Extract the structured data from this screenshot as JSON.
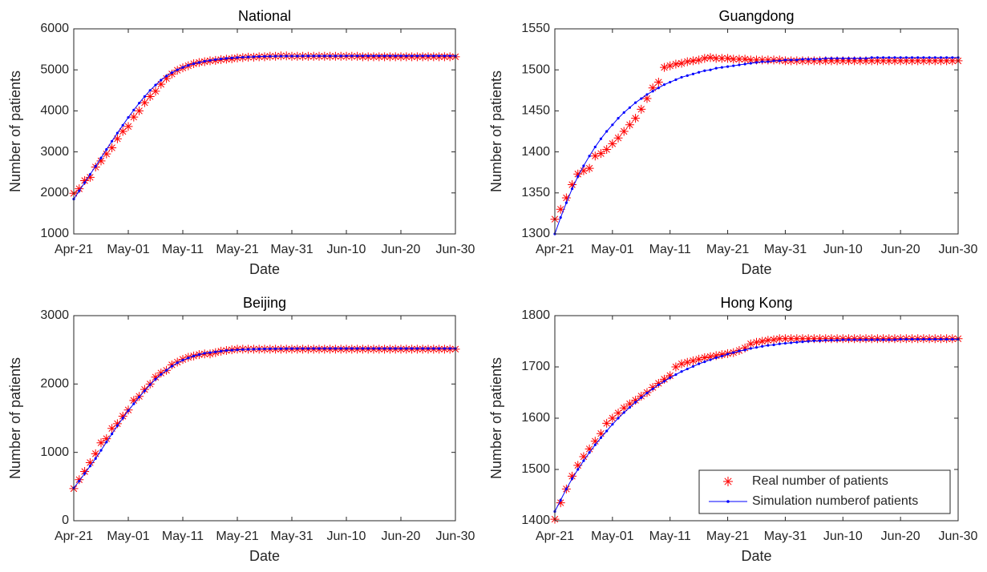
{
  "chart_data": [
    {
      "type": "line",
      "title": "National",
      "x_label": "Date",
      "y_label": "Number of patients",
      "x": [
        0,
        1,
        2,
        3,
        4,
        5,
        6,
        7,
        8,
        9,
        10,
        11,
        12,
        13,
        14,
        15,
        16,
        17,
        18,
        19,
        20,
        21,
        22,
        23,
        24,
        25,
        26,
        27,
        28,
        29,
        30,
        31,
        32,
        33,
        34,
        35,
        36,
        37,
        38,
        39,
        40,
        41,
        42,
        43,
        44,
        45,
        46,
        47,
        48,
        49,
        50,
        51,
        52,
        53,
        54,
        55,
        56,
        57,
        58,
        59,
        60,
        61,
        62,
        63,
        64,
        65,
        66,
        67,
        68,
        69,
        70
      ],
      "xlim": [
        0,
        70
      ],
      "xticks": [
        {
          "value": 0,
          "label": "Apr-21"
        },
        {
          "value": 10,
          "label": "May-01"
        },
        {
          "value": 20,
          "label": "May-11"
        },
        {
          "value": 30,
          "label": "May-21"
        },
        {
          "value": 40,
          "label": "May-31"
        },
        {
          "value": 50,
          "label": "Jun-10"
        },
        {
          "value": 60,
          "label": "Jun-20"
        },
        {
          "value": 70,
          "label": "Jun-30"
        }
      ],
      "ylim": [
        1000,
        6000
      ],
      "yticks": [
        1000,
        2000,
        3000,
        4000,
        5000,
        6000
      ],
      "series": [
        {
          "name": "Real number of patients",
          "color": "#ff0000",
          "marker": "star",
          "values": [
            1990,
            2100,
            2300,
            2380,
            2630,
            2780,
            2950,
            3100,
            3320,
            3500,
            3620,
            3850,
            4000,
            4200,
            4350,
            4480,
            4650,
            4790,
            4900,
            4990,
            5050,
            5100,
            5150,
            5180,
            5200,
            5220,
            5230,
            5250,
            5260,
            5270,
            5290,
            5300,
            5310,
            5310,
            5320,
            5320,
            5330,
            5330,
            5340,
            5340,
            5330,
            5330,
            5330,
            5330,
            5330,
            5330,
            5330,
            5330,
            5330,
            5330,
            5330,
            5330,
            5330,
            5320,
            5320,
            5320,
            5320,
            5320,
            5320,
            5320,
            5320,
            5320,
            5320,
            5320,
            5320,
            5320,
            5320,
            5320,
            5320,
            5320,
            5320
          ]
        },
        {
          "name": "Simulation numberof patients",
          "color": "#0000ff",
          "marker": "dot",
          "values": [
            1850,
            2050,
            2250,
            2450,
            2650,
            2850,
            3060,
            3260,
            3460,
            3650,
            3840,
            4020,
            4190,
            4350,
            4500,
            4630,
            4750,
            4850,
            4930,
            5000,
            5060,
            5110,
            5150,
            5180,
            5210,
            5230,
            5250,
            5265,
            5280,
            5290,
            5300,
            5308,
            5315,
            5320,
            5325,
            5328,
            5331,
            5333,
            5335,
            5336,
            5337,
            5337,
            5338,
            5338,
            5338,
            5339,
            5339,
            5339,
            5339,
            5339,
            5340,
            5340,
            5340,
            5340,
            5340,
            5340,
            5340,
            5340,
            5340,
            5340,
            5340,
            5340,
            5340,
            5340,
            5340,
            5340,
            5340,
            5340,
            5340,
            5340,
            5340
          ]
        }
      ]
    },
    {
      "type": "line",
      "title": "Guangdong",
      "x_label": "Date",
      "y_label": "Number of patients",
      "x": [
        0,
        1,
        2,
        3,
        4,
        5,
        6,
        7,
        8,
        9,
        10,
        11,
        12,
        13,
        14,
        15,
        16,
        17,
        18,
        19,
        20,
        21,
        22,
        23,
        24,
        25,
        26,
        27,
        28,
        29,
        30,
        31,
        32,
        33,
        34,
        35,
        36,
        37,
        38,
        39,
        40,
        41,
        42,
        43,
        44,
        45,
        46,
        47,
        48,
        49,
        50,
        51,
        52,
        53,
        54,
        55,
        56,
        57,
        58,
        59,
        60,
        61,
        62,
        63,
        64,
        65,
        66,
        67,
        68,
        69,
        70
      ],
      "xlim": [
        0,
        70
      ],
      "xticks": [
        {
          "value": 0,
          "label": "Apr-21"
        },
        {
          "value": 10,
          "label": "May-01"
        },
        {
          "value": 20,
          "label": "May-11"
        },
        {
          "value": 30,
          "label": "May-21"
        },
        {
          "value": 40,
          "label": "May-31"
        },
        {
          "value": 50,
          "label": "Jun-10"
        },
        {
          "value": 60,
          "label": "Jun-20"
        },
        {
          "value": 70,
          "label": "Jun-30"
        }
      ],
      "ylim": [
        1300,
        1550
      ],
      "yticks": [
        1300,
        1350,
        1400,
        1450,
        1500,
        1550
      ],
      "series": [
        {
          "name": "Real number of patients",
          "color": "#ff0000",
          "marker": "star",
          "values": [
            1318,
            1330,
            1344,
            1360,
            1373,
            1377,
            1380,
            1395,
            1398,
            1403,
            1410,
            1417,
            1425,
            1433,
            1441,
            1452,
            1465,
            1478,
            1485,
            1503,
            1505,
            1507,
            1508,
            1510,
            1511,
            1512,
            1514,
            1515,
            1514,
            1514,
            1514,
            1513,
            1513,
            1513,
            1512,
            1512,
            1512,
            1512,
            1512,
            1512,
            1511,
            1511,
            1511,
            1511,
            1511,
            1511,
            1511,
            1511,
            1511,
            1511,
            1511,
            1511,
            1511,
            1511,
            1511,
            1511,
            1511,
            1511,
            1511,
            1511,
            1511,
            1511,
            1511,
            1511,
            1511,
            1511,
            1511,
            1511,
            1511,
            1511,
            1511
          ]
        },
        {
          "name": "Simulation numberof patients",
          "color": "#0000ff",
          "marker": "dot",
          "values": [
            1300,
            1320,
            1338,
            1355,
            1370,
            1383,
            1395,
            1406,
            1416,
            1425,
            1433,
            1441,
            1448,
            1454,
            1460,
            1465,
            1470,
            1474,
            1478,
            1482,
            1485,
            1488,
            1491,
            1493,
            1495,
            1497,
            1499,
            1500,
            1502,
            1503,
            1504,
            1505,
            1506,
            1507,
            1508,
            1509,
            1510,
            1510,
            1511,
            1511,
            1512,
            1512,
            1512,
            1513,
            1513,
            1513,
            1513,
            1514,
            1514,
            1514,
            1514,
            1514,
            1514,
            1514,
            1514,
            1515,
            1515,
            1515,
            1515,
            1515,
            1515,
            1515,
            1515,
            1515,
            1515,
            1515,
            1515,
            1515,
            1515,
            1515,
            1515
          ]
        }
      ]
    },
    {
      "type": "line",
      "title": "Beijing",
      "x_label": "Date",
      "y_label": "Number of patients",
      "x": [
        0,
        1,
        2,
        3,
        4,
        5,
        6,
        7,
        8,
        9,
        10,
        11,
        12,
        13,
        14,
        15,
        16,
        17,
        18,
        19,
        20,
        21,
        22,
        23,
        24,
        25,
        26,
        27,
        28,
        29,
        30,
        31,
        32,
        33,
        34,
        35,
        36,
        37,
        38,
        39,
        40,
        41,
        42,
        43,
        44,
        45,
        46,
        47,
        48,
        49,
        50,
        51,
        52,
        53,
        54,
        55,
        56,
        57,
        58,
        59,
        60,
        61,
        62,
        63,
        64,
        65,
        66,
        67,
        68,
        69,
        70
      ],
      "xlim": [
        0,
        70
      ],
      "xticks": [
        {
          "value": 0,
          "label": "Apr-21"
        },
        {
          "value": 10,
          "label": "May-01"
        },
        {
          "value": 20,
          "label": "May-11"
        },
        {
          "value": 30,
          "label": "May-21"
        },
        {
          "value": 40,
          "label": "May-31"
        },
        {
          "value": 50,
          "label": "Jun-10"
        },
        {
          "value": 60,
          "label": "Jun-20"
        },
        {
          "value": 70,
          "label": "Jun-30"
        }
      ],
      "ylim": [
        0,
        3000
      ],
      "yticks": [
        0,
        1000,
        2000,
        3000
      ],
      "series": [
        {
          "name": "Real number of patients",
          "color": "#ff0000",
          "marker": "star",
          "values": [
            470,
            600,
            720,
            850,
            980,
            1140,
            1200,
            1350,
            1420,
            1530,
            1620,
            1760,
            1820,
            1920,
            2000,
            2100,
            2160,
            2200,
            2280,
            2320,
            2360,
            2390,
            2410,
            2430,
            2440,
            2440,
            2460,
            2480,
            2490,
            2500,
            2510,
            2510,
            2510,
            2510,
            2510,
            2510,
            2510,
            2510,
            2510,
            2510,
            2510,
            2510,
            2510,
            2510,
            2510,
            2510,
            2510,
            2510,
            2510,
            2510,
            2510,
            2510,
            2510,
            2510,
            2510,
            2510,
            2510,
            2510,
            2510,
            2510,
            2510,
            2510,
            2510,
            2510,
            2510,
            2510,
            2510,
            2510,
            2510,
            2510,
            2510
          ]
        },
        {
          "name": "Simulation numberof patients",
          "color": "#0000ff",
          "marker": "dot",
          "values": [
            480,
            580,
            690,
            800,
            910,
            1030,
            1150,
            1270,
            1390,
            1500,
            1610,
            1710,
            1810,
            1900,
            1990,
            2070,
            2140,
            2200,
            2260,
            2310,
            2350,
            2380,
            2410,
            2430,
            2450,
            2460,
            2470,
            2480,
            2490,
            2495,
            2500,
            2505,
            2508,
            2510,
            2512,
            2514,
            2515,
            2516,
            2517,
            2518,
            2518,
            2519,
            2519,
            2519,
            2520,
            2520,
            2520,
            2520,
            2520,
            2520,
            2520,
            2520,
            2520,
            2520,
            2520,
            2520,
            2520,
            2520,
            2520,
            2520,
            2520,
            2520,
            2520,
            2520,
            2520,
            2520,
            2520,
            2520,
            2520,
            2520,
            2520
          ]
        }
      ]
    },
    {
      "type": "line",
      "title": "Hong Kong",
      "x_label": "Date",
      "y_label": "Number of patients",
      "legend": "lower right",
      "x": [
        0,
        1,
        2,
        3,
        4,
        5,
        6,
        7,
        8,
        9,
        10,
        11,
        12,
        13,
        14,
        15,
        16,
        17,
        18,
        19,
        20,
        21,
        22,
        23,
        24,
        25,
        26,
        27,
        28,
        29,
        30,
        31,
        32,
        33,
        34,
        35,
        36,
        37,
        38,
        39,
        40,
        41,
        42,
        43,
        44,
        45,
        46,
        47,
        48,
        49,
        50,
        51,
        52,
        53,
        54,
        55,
        56,
        57,
        58,
        59,
        60,
        61,
        62,
        63,
        64,
        65,
        66,
        67,
        68,
        69,
        70
      ],
      "xlim": [
        0,
        70
      ],
      "xticks": [
        {
          "value": 0,
          "label": "Apr-21"
        },
        {
          "value": 10,
          "label": "May-01"
        },
        {
          "value": 20,
          "label": "May-11"
        },
        {
          "value": 30,
          "label": "May-21"
        },
        {
          "value": 40,
          "label": "May-31"
        },
        {
          "value": 50,
          "label": "Jun-10"
        },
        {
          "value": 60,
          "label": "Jun-20"
        },
        {
          "value": 70,
          "label": "Jun-30"
        }
      ],
      "ylim": [
        1400,
        1800
      ],
      "yticks": [
        1400,
        1500,
        1600,
        1700,
        1800
      ],
      "series": [
        {
          "name": "Real number of patients",
          "color": "#ff0000",
          "marker": "star",
          "values": [
            1403,
            1435,
            1462,
            1487,
            1508,
            1525,
            1540,
            1555,
            1570,
            1590,
            1600,
            1610,
            1620,
            1628,
            1635,
            1643,
            1650,
            1660,
            1668,
            1676,
            1683,
            1700,
            1706,
            1709,
            1712,
            1715,
            1718,
            1720,
            1722,
            1724,
            1726,
            1728,
            1732,
            1737,
            1745,
            1748,
            1750,
            1752,
            1753,
            1755,
            1755,
            1755,
            1755,
            1755,
            1755,
            1755,
            1755,
            1755,
            1755,
            1755,
            1755,
            1755,
            1755,
            1755,
            1755,
            1755,
            1755,
            1755,
            1755,
            1755,
            1755,
            1755,
            1755,
            1755,
            1755,
            1755,
            1755,
            1755,
            1755,
            1755,
            1755
          ]
        },
        {
          "name": "Simulation numberof patients",
          "color": "#0000ff",
          "marker": "dot",
          "values": [
            1418,
            1440,
            1462,
            1482,
            1500,
            1517,
            1533,
            1548,
            1562,
            1575,
            1588,
            1600,
            1611,
            1621,
            1631,
            1640,
            1649,
            1657,
            1665,
            1672,
            1679,
            1685,
            1691,
            1696,
            1701,
            1706,
            1710,
            1714,
            1718,
            1721,
            1725,
            1728,
            1731,
            1733,
            1736,
            1738,
            1740,
            1742,
            1743,
            1745,
            1746,
            1747,
            1748,
            1749,
            1750,
            1751,
            1751,
            1752,
            1752,
            1752,
            1753,
            1753,
            1753,
            1753,
            1753,
            1753,
            1753,
            1753,
            1753,
            1753,
            1754,
            1754,
            1754,
            1754,
            1754,
            1754,
            1754,
            1754,
            1754,
            1754,
            1754
          ]
        }
      ]
    }
  ]
}
